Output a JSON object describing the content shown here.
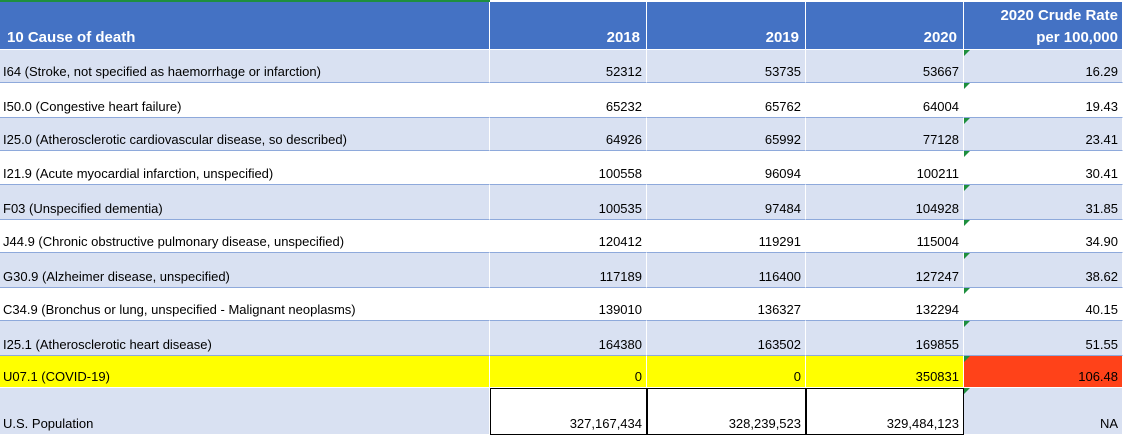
{
  "header": {
    "cause": "10 Cause of death",
    "y2018": "2018",
    "y2019": "2019",
    "y2020": "2020",
    "rate_line1": "2020 Crude Rate",
    "rate_line2": "per 100,000"
  },
  "rows": [
    {
      "cause": "I64 (Stroke, not specified as haemorrhage or infarction)",
      "y2018": "52312",
      "y2019": "53735",
      "y2020": "53667",
      "rate": "16.29"
    },
    {
      "cause": "I50.0 (Congestive heart failure)",
      "y2018": "65232",
      "y2019": "65762",
      "y2020": "64004",
      "rate": "19.43"
    },
    {
      "cause": "I25.0 (Atherosclerotic cardiovascular disease, so described)",
      "y2018": "64926",
      "y2019": "65992",
      "y2020": "77128",
      "rate": "23.41"
    },
    {
      "cause": "I21.9 (Acute myocardial infarction, unspecified)",
      "y2018": "100558",
      "y2019": "96094",
      "y2020": "100211",
      "rate": "30.41"
    },
    {
      "cause": "F03 (Unspecified dementia)",
      "y2018": "100535",
      "y2019": "97484",
      "y2020": "104928",
      "rate": "31.85"
    },
    {
      "cause": "J44.9 (Chronic obstructive pulmonary disease, unspecified)",
      "y2018": "120412",
      "y2019": "119291",
      "y2020": "115004",
      "rate": "34.90"
    },
    {
      "cause": "G30.9 (Alzheimer disease, unspecified)",
      "y2018": "117189",
      "y2019": "116400",
      "y2020": "127247",
      "rate": "38.62"
    },
    {
      "cause": "C34.9 (Bronchus or lung, unspecified - Malignant neoplasms)",
      "y2018": "139010",
      "y2019": "136327",
      "y2020": "132294",
      "rate": "40.15"
    },
    {
      "cause": "I25.1 (Atherosclerotic heart disease)",
      "y2018": "164380",
      "y2019": "163502",
      "y2020": "169855",
      "rate": "51.55"
    }
  ],
  "covid": {
    "cause": "U07.1 (COVID-19)",
    "y2018": "0",
    "y2019": "0",
    "y2020": "350831",
    "rate": "106.48"
  },
  "population": {
    "cause": "U.S. Population",
    "y2018": "327,167,434",
    "y2019": "328,239,523",
    "y2020": "329,484,123",
    "rate": "NA"
  },
  "colors": {
    "header": "#4472c4",
    "band": "#d9e1f2",
    "highlight": "#ffff00",
    "rate_highlight": "#ff4219"
  }
}
